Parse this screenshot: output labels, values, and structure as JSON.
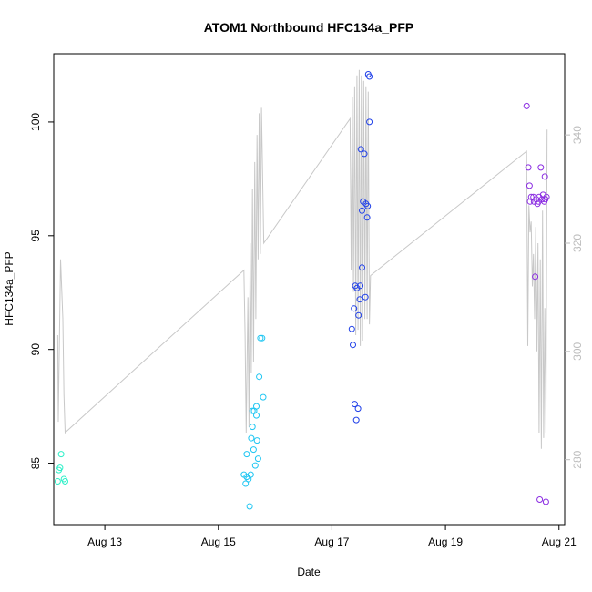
{
  "chart_data": {
    "type": "scatter",
    "title": "ATOM1 Northbound HFC134a_PFP",
    "xlabel": "Date",
    "ylabel": "HFC134a_PFP",
    "x_unit": "day of August",
    "xlim": [
      12.1,
      21.1
    ],
    "ylim": [
      82.3,
      103
    ],
    "y2lim": [
      268,
      355
    ],
    "x_ticks": [
      {
        "value": 13,
        "label": "Aug 13"
      },
      {
        "value": 15,
        "label": "Aug 15"
      },
      {
        "value": 17,
        "label": "Aug 17"
      },
      {
        "value": 19,
        "label": "Aug 19"
      },
      {
        "value": 21,
        "label": "Aug 21"
      }
    ],
    "y_ticks": [
      {
        "value": 85,
        "label": "85"
      },
      {
        "value": 90,
        "label": "90"
      },
      {
        "value": 95,
        "label": "95"
      },
      {
        "value": 100,
        "label": "100"
      }
    ],
    "y2_ticks": [
      {
        "value": 280,
        "label": "280"
      },
      {
        "value": 300,
        "label": "300"
      },
      {
        "value": 320,
        "label": "320"
      },
      {
        "value": 340,
        "label": "340"
      }
    ],
    "grid": false,
    "legend": "none",
    "colors": {
      "points_early": "#2ef0c8",
      "points_mid": "#1fc6f2",
      "points_late": "#1f3fe8",
      "points_last": "#8a2be2",
      "secondary_line": "#c8c8c8",
      "secondary_axis": "#bdbdbd"
    },
    "series": [
      {
        "kind": "points",
        "color": "#2ef0c8",
        "points": [
          [
            12.17,
            84.2
          ],
          [
            12.19,
            84.7
          ],
          [
            12.21,
            84.8
          ],
          [
            12.23,
            85.4
          ],
          [
            12.28,
            84.3
          ],
          [
            12.3,
            84.2
          ]
        ]
      },
      {
        "kind": "points",
        "color": "#1fc6f2",
        "points": [
          [
            15.45,
            84.5
          ],
          [
            15.48,
            84.1
          ],
          [
            15.5,
            84.4
          ],
          [
            15.5,
            85.4
          ],
          [
            15.53,
            84.3
          ],
          [
            15.55,
            83.1
          ],
          [
            15.57,
            84.5
          ],
          [
            15.58,
            86.1
          ],
          [
            15.6,
            86.6
          ],
          [
            15.6,
            87.3
          ],
          [
            15.62,
            85.6
          ],
          [
            15.63,
            87.3
          ],
          [
            15.65,
            84.9
          ],
          [
            15.67,
            87.1
          ],
          [
            15.67,
            87.5
          ],
          [
            15.68,
            86.0
          ],
          [
            15.7,
            85.2
          ],
          [
            15.72,
            88.8
          ],
          [
            15.74,
            90.5
          ],
          [
            15.77,
            90.5
          ],
          [
            15.79,
            87.9
          ]
        ]
      },
      {
        "kind": "points",
        "color": "#1f3fe8",
        "points": [
          [
            17.35,
            90.9
          ],
          [
            17.37,
            90.2
          ],
          [
            17.39,
            91.8
          ],
          [
            17.4,
            87.6
          ],
          [
            17.41,
            92.8
          ],
          [
            17.43,
            86.9
          ],
          [
            17.44,
            92.7
          ],
          [
            17.46,
            87.4
          ],
          [
            17.47,
            91.5
          ],
          [
            17.49,
            92.2
          ],
          [
            17.5,
            92.8
          ],
          [
            17.51,
            98.8
          ],
          [
            17.53,
            96.1
          ],
          [
            17.53,
            93.6
          ],
          [
            17.55,
            96.5
          ],
          [
            17.57,
            98.6
          ],
          [
            17.59,
            92.3
          ],
          [
            17.6,
            96.4
          ],
          [
            17.62,
            95.8
          ],
          [
            17.63,
            96.3
          ],
          [
            17.64,
            102.1
          ],
          [
            17.66,
            102.0
          ],
          [
            17.66,
            100.0
          ]
        ]
      },
      {
        "kind": "points",
        "color": "#8a2be2",
        "points": [
          [
            20.43,
            100.7
          ],
          [
            20.46,
            98.0
          ],
          [
            20.48,
            97.2
          ],
          [
            20.49,
            96.5
          ],
          [
            20.51,
            96.7
          ],
          [
            20.55,
            96.7
          ],
          [
            20.56,
            96.5
          ],
          [
            20.58,
            93.2
          ],
          [
            20.6,
            96.6
          ],
          [
            20.62,
            96.4
          ],
          [
            20.64,
            96.5
          ],
          [
            20.65,
            96.7
          ],
          [
            20.66,
            83.4
          ],
          [
            20.68,
            98.0
          ],
          [
            20.7,
            96.6
          ],
          [
            20.72,
            96.8
          ],
          [
            20.74,
            96.5
          ],
          [
            20.75,
            97.6
          ],
          [
            20.76,
            96.6
          ],
          [
            20.77,
            83.3
          ],
          [
            20.78,
            96.7
          ]
        ]
      },
      {
        "kind": "line",
        "axis": "right",
        "color": "#c8c8c8",
        "points": [
          [
            12.17,
            303
          ],
          [
            12.18,
            287
          ],
          [
            12.22,
            317
          ],
          [
            12.26,
            306
          ],
          [
            12.28,
            292
          ],
          [
            12.3,
            285
          ],
          [
            15.45,
            315
          ],
          [
            15.47,
            303
          ],
          [
            15.49,
            285
          ],
          [
            15.52,
            310
          ],
          [
            15.54,
            286
          ],
          [
            15.56,
            320
          ],
          [
            15.58,
            296
          ],
          [
            15.6,
            330
          ],
          [
            15.62,
            298
          ],
          [
            15.64,
            335
          ],
          [
            15.66,
            306
          ],
          [
            15.68,
            340
          ],
          [
            15.7,
            317
          ],
          [
            15.72,
            344
          ],
          [
            15.74,
            318
          ],
          [
            15.76,
            345
          ],
          [
            15.8,
            320
          ],
          [
            17.32,
            343
          ],
          [
            17.34,
            315
          ],
          [
            17.36,
            347
          ],
          [
            17.38,
            311
          ],
          [
            17.4,
            349
          ],
          [
            17.42,
            303
          ],
          [
            17.44,
            351
          ],
          [
            17.46,
            304
          ],
          [
            17.48,
            352
          ],
          [
            17.5,
            301
          ],
          [
            17.52,
            351
          ],
          [
            17.54,
            302
          ],
          [
            17.56,
            350
          ],
          [
            17.58,
            306
          ],
          [
            17.6,
            349
          ],
          [
            17.62,
            306
          ],
          [
            17.64,
            348
          ],
          [
            17.66,
            305
          ],
          [
            17.68,
            314
          ],
          [
            20.43,
            337
          ],
          [
            20.45,
            301
          ],
          [
            20.47,
            327
          ],
          [
            20.49,
            322
          ],
          [
            20.51,
            324
          ],
          [
            20.53,
            312
          ],
          [
            20.55,
            318
          ],
          [
            20.57,
            306
          ],
          [
            20.59,
            323
          ],
          [
            20.61,
            300
          ],
          [
            20.63,
            320
          ],
          [
            20.65,
            285
          ],
          [
            20.67,
            317
          ],
          [
            20.69,
            282
          ],
          [
            20.71,
            326
          ],
          [
            20.73,
            284
          ],
          [
            20.75,
            308
          ],
          [
            20.77,
            285
          ],
          [
            20.79,
            341
          ]
        ]
      }
    ]
  }
}
